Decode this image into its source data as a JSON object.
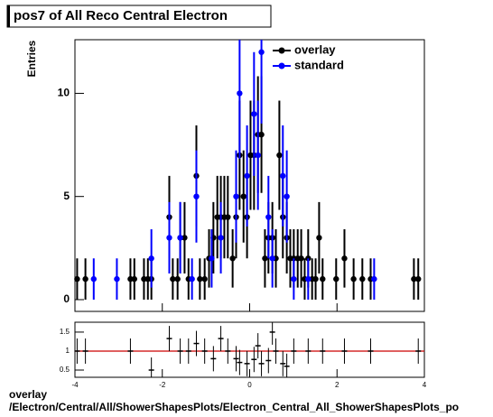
{
  "chart_data": [
    {
      "type": "scatter",
      "title": "pos7 of All Reco Central Electron",
      "y_label": "Entries",
      "xlim": [
        -4,
        4
      ],
      "ylim": [
        -0.57,
        12.6
      ],
      "xticks": [
        -4,
        -2,
        0,
        2,
        4
      ],
      "yticks": [
        0,
        5,
        10
      ],
      "legend": "top-right",
      "series": [
        {
          "name": "overlay",
          "color": "#000000",
          "x": [
            -3.95,
            -3.76,
            -2.73,
            -2.64,
            -2.42,
            -2.33,
            -2.25,
            -1.84,
            -1.76,
            -1.65,
            -1.59,
            -1.49,
            -1.4,
            -1.22,
            -1.14,
            -1.03,
            -0.93,
            -0.83,
            -0.74,
            -0.66,
            -0.58,
            -0.5,
            -0.39,
            -0.31,
            -0.23,
            -0.14,
            -0.06,
            0.02,
            0.1,
            0.19,
            0.27,
            0.35,
            0.43,
            0.52,
            0.6,
            0.68,
            0.76,
            0.85,
            0.93,
            1.01,
            1.1,
            1.18,
            1.26,
            1.34,
            1.43,
            1.51,
            1.59,
            1.67,
            1.98,
            2.17,
            2.38,
            2.58,
            2.77,
            3.76,
            3.86
          ],
          "values": [
            1,
            1,
            1,
            1,
            1,
            1,
            1,
            4,
            1,
            1,
            3,
            3,
            1,
            6,
            1,
            1,
            2,
            3,
            4,
            4,
            4,
            4,
            2,
            4,
            7,
            5,
            4,
            7,
            7,
            8,
            8,
            2,
            3,
            3,
            2,
            7,
            4,
            3,
            2,
            2,
            2,
            2,
            1,
            2,
            1,
            1,
            3,
            1,
            1,
            2,
            1,
            1,
            1,
            1,
            1
          ]
        },
        {
          "name": "standard",
          "color": "#0000ff",
          "x": [
            -3.57,
            -3.04,
            -2.25,
            -1.84,
            -1.59,
            -1.32,
            -1.22,
            -0.87,
            -0.66,
            -0.31,
            -0.23,
            -0.06,
            0.1,
            0.19,
            0.27,
            0.43,
            0.52,
            0.76,
            0.85,
            1.01,
            1.34,
            2.85
          ],
          "values": [
            1,
            1,
            2,
            3,
            3,
            1,
            5,
            2,
            3,
            5,
            10,
            6,
            9,
            7,
            12,
            4,
            2,
            6,
            5,
            1,
            1,
            1
          ]
        }
      ]
    },
    {
      "type": "ratio",
      "xlim": [
        -4,
        4
      ],
      "ylim": [
        0.31,
        1.76
      ],
      "xticks": [
        -4,
        -2,
        0,
        2,
        4
      ],
      "yticks": [
        0.5,
        1,
        1.5
      ],
      "reference": 1,
      "reference_color": "#cc0000",
      "x": [
        -3.95,
        -3.76,
        -2.73,
        -2.25,
        -1.84,
        -1.59,
        -1.4,
        -1.22,
        -1.03,
        -0.83,
        -0.66,
        -0.5,
        -0.31,
        -0.23,
        -0.06,
        0.1,
        0.19,
        0.27,
        0.43,
        0.52,
        0.6,
        0.76,
        0.85,
        1.01,
        1.34,
        1.67,
        2.17,
        2.77,
        3.86
      ],
      "values": [
        1,
        1,
        1,
        0.5,
        1.33,
        1,
        1,
        1.2,
        1,
        0.8,
        1.33,
        1,
        0.8,
        0.7,
        0.67,
        0.78,
        1.14,
        0.67,
        0.75,
        1.5,
        1,
        0.67,
        0.6,
        1,
        1,
        1,
        1,
        1,
        1
      ]
    }
  ],
  "footer": {
    "line1": "overlay",
    "line2": "/Electron/Central/All/ShowerShapesPlots/Electron_Central_All_ShowerShapesPlots_po"
  }
}
